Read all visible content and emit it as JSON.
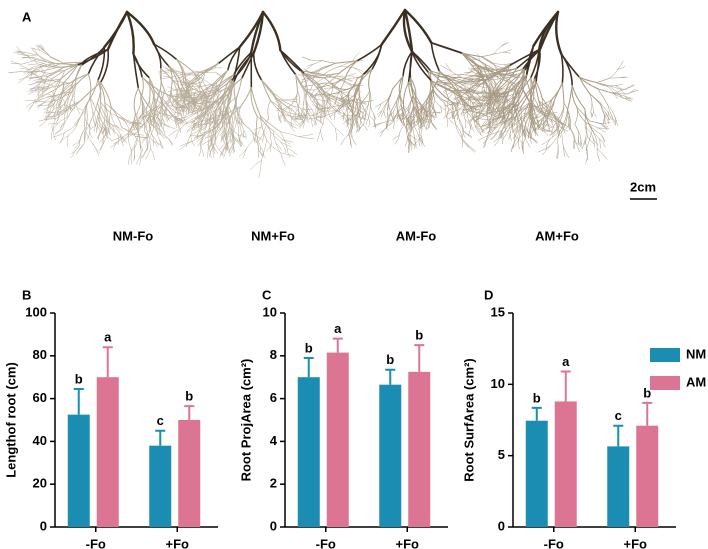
{
  "panel_a": {
    "label": "A",
    "labels": [
      "NM-Fo",
      "NM+Fo",
      "AM-Fo",
      "AM+Fo"
    ],
    "scale_bar": "2cm"
  },
  "chart_data": [
    {
      "type": "bar",
      "panel": "B",
      "ylabel": "Lengthof root (cm)",
      "categories": [
        "-Fo",
        "+Fo"
      ],
      "series": [
        {
          "color": "#1b8db3",
          "values": [
            52.5,
            38
          ],
          "errors": [
            12,
            7
          ],
          "letters": [
            "b",
            "c"
          ]
        },
        {
          "color": "#dc7593",
          "values": [
            70,
            50
          ],
          "errors": [
            14,
            6.5
          ],
          "letters": [
            "a",
            "b"
          ]
        }
      ],
      "ylim": [
        0,
        100
      ],
      "yticks": [
        0,
        20,
        40,
        60,
        80,
        100
      ]
    },
    {
      "type": "bar",
      "panel": "C",
      "ylabel": "Root ProjArea (cm²)",
      "categories": [
        "-Fo",
        "+Fo"
      ],
      "series": [
        {
          "color": "#1b8db3",
          "values": [
            7.0,
            6.65
          ],
          "errors": [
            0.9,
            0.7
          ],
          "letters": [
            "b",
            "b"
          ]
        },
        {
          "color": "#dc7593",
          "values": [
            8.15,
            7.25
          ],
          "errors": [
            0.65,
            1.25
          ],
          "letters": [
            "a",
            "b"
          ]
        }
      ],
      "ylim": [
        0,
        10
      ],
      "yticks": [
        0,
        2,
        4,
        6,
        8,
        10
      ]
    },
    {
      "type": "bar",
      "panel": "D",
      "ylabel": "Root SurfArea (cm²)",
      "categories": [
        "-Fo",
        "+Fo"
      ],
      "series": [
        {
          "name": "NM",
          "color": "#1b8db3",
          "values": [
            7.45,
            5.65
          ],
          "errors": [
            0.9,
            1.45
          ],
          "letters": [
            "b",
            "c"
          ]
        },
        {
          "name": "AM",
          "color": "#dc7593",
          "values": [
            8.8,
            7.1
          ],
          "errors": [
            2.1,
            1.6
          ],
          "letters": [
            "a",
            "b"
          ]
        }
      ],
      "ylim": [
        0,
        15
      ],
      "yticks": [
        0,
        5,
        10,
        15
      ]
    }
  ]
}
